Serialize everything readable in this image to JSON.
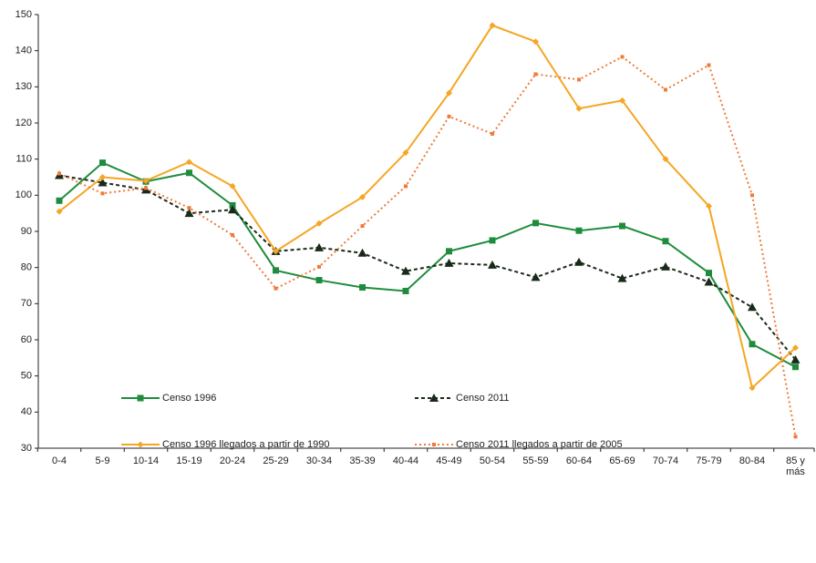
{
  "chart_data": {
    "type": "line",
    "categories": [
      "0-4",
      "5-9",
      "10-14",
      "15-19",
      "20-24",
      "25-29",
      "30-34",
      "35-39",
      "40-44",
      "45-49",
      "50-54",
      "55-59",
      "60-64",
      "65-69",
      "70-74",
      "75-79",
      "80-84",
      "85 y más"
    ],
    "series": [
      {
        "name": "Censo 1996",
        "color": "#1e8c3c",
        "line_style": "solid",
        "marker": "square",
        "values": [
          98.5,
          109,
          103.8,
          106.2,
          97.2,
          79.2,
          76.5,
          74.5,
          73.5,
          84.5,
          87.5,
          92.3,
          90.2,
          91.5,
          87.3,
          78.5,
          58.8,
          52.5
        ]
      },
      {
        "name": "Censo 2011",
        "color": "#1a2a1a",
        "line_style": "dashed",
        "marker": "triangle",
        "values": [
          105.5,
          103.5,
          101.5,
          95,
          96,
          84.5,
          85.5,
          84,
          79,
          81.2,
          80.7,
          77.3,
          81.5,
          77,
          80.2,
          76,
          69,
          54.5
        ]
      },
      {
        "name": "Censo 1996 llegados a partir de 1990",
        "color": "#f5a623",
        "line_style": "solid",
        "marker": "diamond",
        "values": [
          95.5,
          105,
          104,
          109.2,
          102.5,
          84.5,
          92.2,
          99.5,
          111.8,
          128.3,
          147,
          142.5,
          124,
          126.2,
          110,
          97,
          46.7,
          57.8
        ]
      },
      {
        "name": "Censo 2011 llegados a partir de 2005",
        "color": "#f07a3a",
        "line_style": "dotted",
        "marker": "small-square",
        "values": [
          106,
          100.5,
          102,
          96.5,
          89,
          74.2,
          80.2,
          91.5,
          102.5,
          121.8,
          117,
          133.5,
          132,
          138.3,
          129.2,
          136,
          100,
          33.2
        ]
      }
    ],
    "ylim": [
      30,
      150
    ],
    "yticks": [
      30,
      40,
      50,
      60,
      70,
      80,
      90,
      100,
      110,
      120,
      130,
      140,
      150
    ],
    "grid": false
  }
}
